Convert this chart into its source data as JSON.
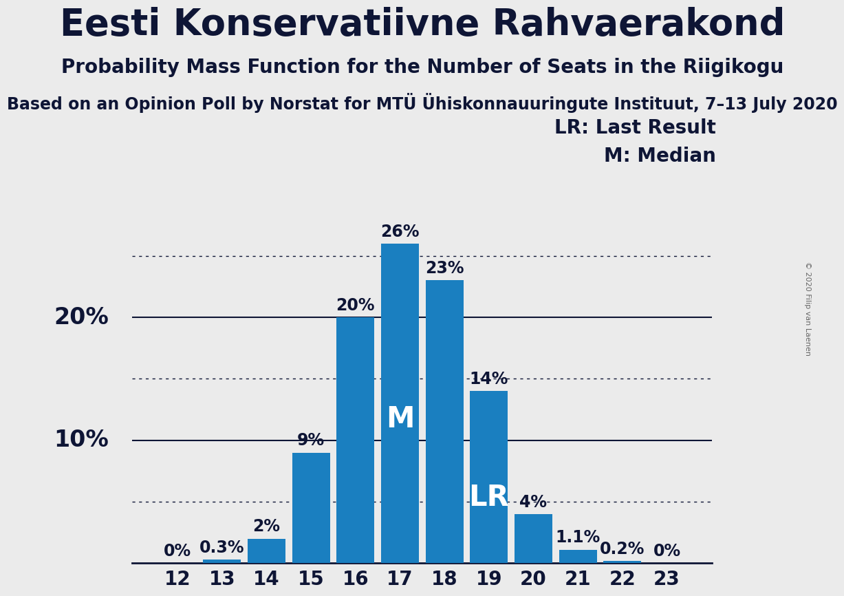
{
  "title": "Eesti Konservatiivne Rahvaerakond",
  "subtitle": "Probability Mass Function for the Number of Seats in the Riigikogu",
  "subtitle2": "Based on an Opinion Poll by Norstat for MTÜ Ühiskonnauuringute Instituut, 7–13 July 2020",
  "copyright": "© 2020 Filip van Laenen",
  "categories": [
    12,
    13,
    14,
    15,
    16,
    17,
    18,
    19,
    20,
    21,
    22,
    23
  ],
  "values": [
    0.0,
    0.3,
    2.0,
    9.0,
    20.0,
    26.0,
    23.0,
    14.0,
    4.0,
    1.1,
    0.2,
    0.0
  ],
  "bar_color": "#1a7fc0",
  "background_color": "#ebebeb",
  "ylim": [
    0,
    30
  ],
  "solid_gridlines": [
    10,
    20
  ],
  "dotted_gridlines": [
    5,
    15,
    25
  ],
  "median_bar": 17,
  "lr_bar": 19,
  "legend_lr": "LR: Last Result",
  "legend_m": "M: Median",
  "title_fontsize": 38,
  "subtitle_fontsize": 20,
  "subtitle2_fontsize": 17,
  "bar_label_fontsize": 17,
  "bar_inner_label_fontsize": 30,
  "tick_fontsize": 20,
  "ytick_fontsize": 24,
  "legend_fontsize": 20,
  "text_color": "#0e1535"
}
